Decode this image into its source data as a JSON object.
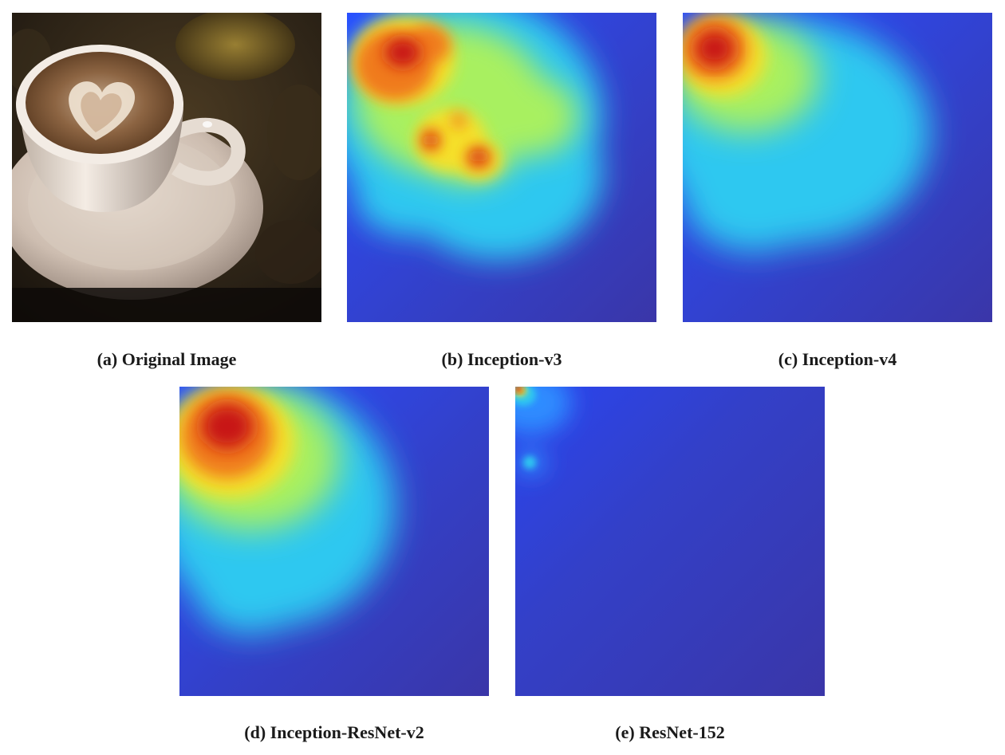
{
  "figure": {
    "panels": [
      {
        "id": "a",
        "caption": "(a) Original Image"
      },
      {
        "id": "b",
        "caption": "(b) Inception-v3"
      },
      {
        "id": "c",
        "caption": "(c) Inception-v4"
      },
      {
        "id": "d",
        "caption": "(d) Inception-ResNet-v2"
      },
      {
        "id": "e",
        "caption": "(e) ResNet-152"
      }
    ]
  },
  "colors": {
    "heatmap_low": "#3a36a8",
    "heatmap_mid_blue": "#2a4dff",
    "heatmap_cyan": "#2ec8f0",
    "heatmap_green": "#a8f060",
    "heatmap_yellow": "#f5e02a",
    "heatmap_orange": "#f07a1a",
    "heatmap_red": "#c81818",
    "photo_background": "#2a2118",
    "cup": "#e8ddd2",
    "coffee_foam": "#8a6040"
  }
}
